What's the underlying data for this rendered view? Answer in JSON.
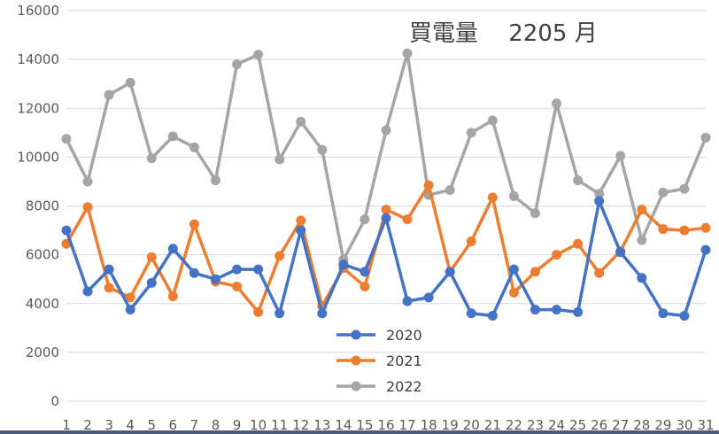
{
  "chart_data": {
    "type": "line",
    "title": "買電量　 2205 月",
    "xlabel": "",
    "ylabel": "",
    "x": [
      1,
      2,
      3,
      4,
      5,
      6,
      7,
      8,
      9,
      10,
      11,
      12,
      13,
      14,
      15,
      16,
      17,
      18,
      19,
      20,
      21,
      22,
      23,
      24,
      25,
      26,
      27,
      28,
      29,
      30,
      31
    ],
    "ylim": [
      0,
      16000
    ],
    "yticks": [
      0,
      2000,
      4000,
      6000,
      8000,
      10000,
      12000,
      14000,
      16000
    ],
    "grid": true,
    "legend_position": "bottom-center",
    "series": [
      {
        "name": "2020",
        "color": "#4472c4",
        "values": [
          7000,
          4500,
          5400,
          3750,
          4850,
          6250,
          5250,
          5000,
          5400,
          5400,
          3600,
          7000,
          3600,
          5600,
          5300,
          7500,
          4100,
          4250,
          5300,
          3600,
          3500,
          5400,
          3750,
          3750,
          3650,
          8200,
          6100,
          5050,
          3600,
          3500,
          6200
        ]
      },
      {
        "name": "2021",
        "color": "#ed7d31",
        "values": [
          6450,
          7950,
          4650,
          4250,
          5900,
          4300,
          7250,
          4900,
          4700,
          3650,
          5950,
          7400,
          3900,
          5450,
          4700,
          7850,
          7450,
          8850,
          5300,
          6550,
          8350,
          4450,
          5300,
          6000,
          6450,
          5250,
          6150,
          7850,
          7050,
          7000,
          7100
        ]
      },
      {
        "name": "2022",
        "color": "#a5a5a5",
        "values": [
          10750,
          9000,
          12550,
          13050,
          9950,
          10850,
          10400,
          9050,
          13800,
          14200,
          9900,
          11450,
          10300,
          5800,
          7450,
          11100,
          14250,
          8450,
          8650,
          11000,
          11500,
          8400,
          7700,
          12200,
          9050,
          8500,
          10050,
          6600,
          8550,
          8700,
          10800
        ]
      }
    ]
  }
}
